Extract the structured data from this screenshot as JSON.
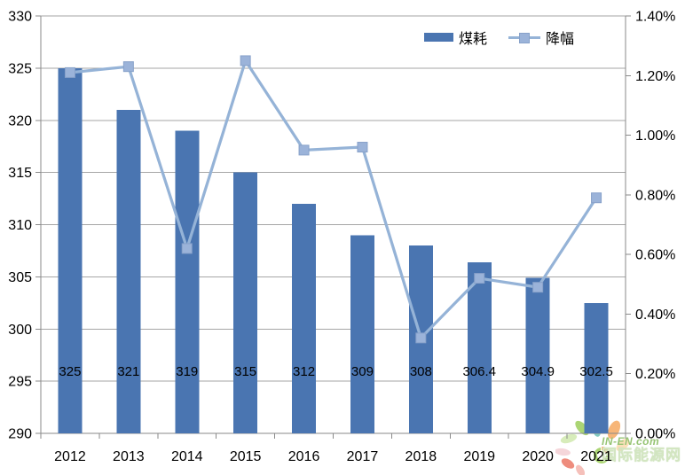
{
  "chart_data": {
    "type": "combo",
    "title": "",
    "categories": [
      "2012",
      "2013",
      "2014",
      "2015",
      "2016",
      "2017",
      "2018",
      "2019",
      "2020",
      "2021"
    ],
    "series": [
      {
        "name": "煤耗",
        "type": "bar",
        "axis": "left",
        "values": [
          325,
          321,
          319,
          315,
          312,
          309,
          308,
          306.4,
          304.9,
          302.5
        ],
        "data_labels": [
          "325",
          "321",
          "319",
          "315",
          "312",
          "309",
          "308",
          "306.4",
          "304.9",
          "302.5"
        ],
        "color": "#4a75b1"
      },
      {
        "name": "降幅",
        "type": "line",
        "axis": "right",
        "unit": "%",
        "values": [
          1.21,
          1.23,
          0.62,
          1.25,
          0.95,
          0.96,
          0.32,
          0.52,
          0.49,
          0.79
        ],
        "color": "#95b3d7",
        "marker": "square",
        "marker_fill": "#9bb3d9",
        "marker_border": "#87a1c9"
      }
    ],
    "left_axis": {
      "min": 290,
      "max": 330,
      "step": 5,
      "tick_labels": [
        "330",
        "325",
        "320",
        "315",
        "310",
        "305",
        "300",
        "295",
        "290"
      ]
    },
    "right_axis": {
      "min": 0.0,
      "max": 1.4,
      "step": 0.2,
      "format": "percent",
      "tick_labels": [
        "1.40%",
        "1.20%",
        "1.00%",
        "0.80%",
        "0.60%",
        "0.40%",
        "0.20%",
        "0.00%"
      ]
    },
    "legend": {
      "position": "top-center",
      "entries": [
        "煤耗",
        "降幅"
      ]
    },
    "grid": true,
    "styles": {
      "grid_color": "#a6a6a6",
      "axis_color": "#8a8a8a",
      "text_color": "#000000",
      "tick_font_size": 16,
      "bar_label_font_size": 15
    }
  },
  "legend": {
    "bar_label": "煤耗",
    "line_label": "降幅"
  },
  "watermark": {
    "brand": "IN-EN.com",
    "site_name": "国际能源网",
    "brand_color": "#6fae3e",
    "name_color": "#c3ddaa"
  }
}
